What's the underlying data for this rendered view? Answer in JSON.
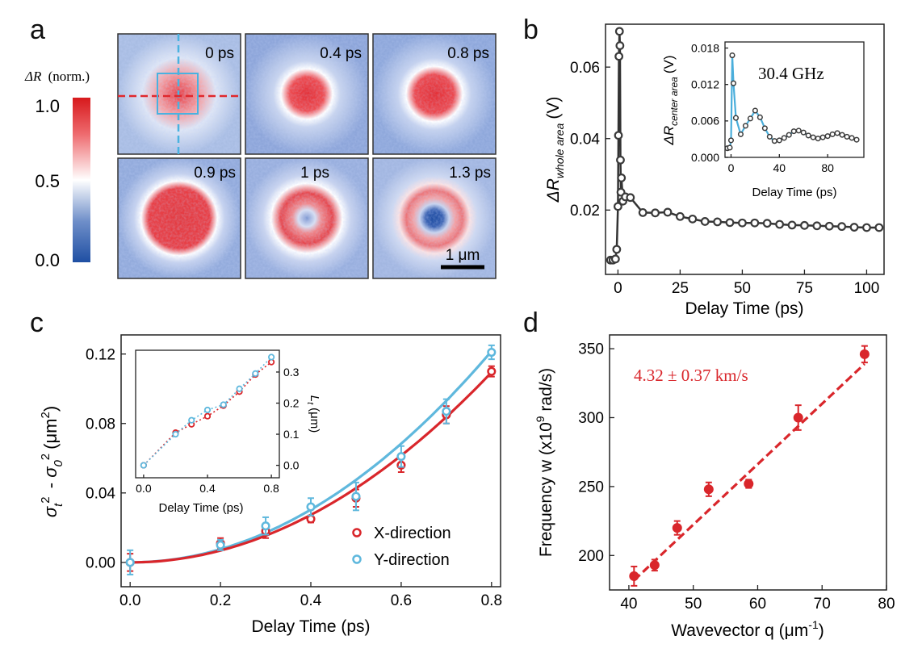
{
  "colors": {
    "red": "#d9262b",
    "blue": "#5fb8dd",
    "dark": "#3a3a3a",
    "cbar_top": "#d7191c",
    "cbar_mid": "#ffffff",
    "cbar_bottom": "#1f4fa3"
  },
  "panel_labels": [
    "a",
    "b",
    "c",
    "d"
  ],
  "panel_a": {
    "colorbar_title_symbol": "ΔR",
    "colorbar_title_unit": "(norm.)",
    "colorbar_ticks": [
      "1.0",
      "0.5",
      "0.0"
    ],
    "frames": [
      {
        "label": "0 ps",
        "pattern": "spot-small"
      },
      {
        "label": "0.4 ps",
        "pattern": "spot"
      },
      {
        "label": "0.8 ps",
        "pattern": "spot-large"
      },
      {
        "label": "0.9 ps",
        "pattern": "disk"
      },
      {
        "label": "1 ps",
        "pattern": "ring"
      },
      {
        "label": "1.3 ps",
        "pattern": "ring-dip"
      }
    ],
    "scalebar_label": "1 μm"
  },
  "chart_data": [
    {
      "panel": "b",
      "type": "line",
      "xlabel": "Delay Time (ps)",
      "ylabel_main": "ΔR",
      "ylabel_sub": "whole area",
      "ylabel_unit": "(V)",
      "xlim": [
        -5,
        107
      ],
      "ylim": [
        0.002,
        0.072
      ],
      "xticks": [
        0,
        25,
        50,
        75,
        100
      ],
      "yticks": [
        0.02,
        0.04,
        0.06
      ],
      "ytick_labels": [
        "0.02",
        "0.04",
        "0.06"
      ],
      "series": [
        {
          "name": "whole area",
          "x": [
            -3,
            -2,
            -1,
            -0.5,
            0,
            0.2,
            0.4,
            0.6,
            0.8,
            1.0,
            1.2,
            1.4,
            2,
            3,
            5,
            10,
            15,
            20,
            25,
            30,
            35,
            40,
            45,
            50,
            55,
            60,
            65,
            70,
            75,
            80,
            85,
            90,
            95,
            100,
            105
          ],
          "y": [
            0.006,
            0.006,
            0.0063,
            0.009,
            0.021,
            0.0409,
            0.063,
            0.07,
            0.066,
            0.034,
            0.025,
            0.029,
            0.0225,
            0.0237,
            0.0235,
            0.0193,
            0.0192,
            0.0194,
            0.0182,
            0.0175,
            0.0168,
            0.0167,
            0.0165,
            0.0164,
            0.0164,
            0.0163,
            0.016,
            0.0158,
            0.0157,
            0.0156,
            0.0155,
            0.0154,
            0.0152,
            0.0151,
            0.0151
          ]
        }
      ],
      "inset": {
        "type": "line",
        "xlabel": "Delay Time (ps)",
        "ylabel_main": "ΔR",
        "ylabel_sub": "center area",
        "ylabel_unit": "(V)",
        "annotation": "30.4 GHz",
        "xlim": [
          -5,
          110
        ],
        "ylim": [
          0,
          0.019
        ],
        "xticks": [
          0,
          40,
          80
        ],
        "yticks": [
          0.0,
          0.006,
          0.012,
          0.018
        ],
        "ytick_labels": [
          "0.000",
          "0.006",
          "0.012",
          "0.018"
        ],
        "points": {
          "x": [
            -3,
            -1,
            0,
            1,
            2,
            4,
            8,
            12,
            16,
            20,
            24,
            28,
            32,
            36,
            40,
            44,
            48,
            52,
            56,
            60,
            64,
            68,
            72,
            76,
            80,
            84,
            88,
            92,
            96,
            100,
            104
          ],
          "y": [
            0.0015,
            0.0016,
            0.0028,
            0.0168,
            0.0122,
            0.0065,
            0.0038,
            0.0052,
            0.0064,
            0.0077,
            0.0066,
            0.0048,
            0.0034,
            0.0027,
            0.0028,
            0.0032,
            0.0037,
            0.0043,
            0.0044,
            0.0041,
            0.0036,
            0.0033,
            0.0031,
            0.0033,
            0.0035,
            0.0038,
            0.004,
            0.0037,
            0.0034,
            0.0032,
            0.0029
          ]
        }
      }
    },
    {
      "panel": "c",
      "type": "scatter",
      "xlabel": "Delay Time (ps)",
      "ylabel": "σt² - σ0² (μm²)",
      "xlim": [
        -0.02,
        0.82
      ],
      "ylim": [
        -0.014,
        0.131
      ],
      "xticks": [
        0.0,
        0.2,
        0.4,
        0.6,
        0.8
      ],
      "xtick_labels": [
        "0.0",
        "0.2",
        "0.4",
        "0.6",
        "0.8"
      ],
      "yticks": [
        0.0,
        0.04,
        0.08,
        0.12
      ],
      "ytick_labels": [
        "0.00",
        "0.04",
        "0.08",
        "0.12"
      ],
      "legend_position": "bottom-right",
      "series": [
        {
          "name": "X-direction",
          "x": [
            0.0,
            0.2,
            0.3,
            0.4,
            0.5,
            0.6,
            0.7,
            0.8
          ],
          "y": [
            0.0,
            0.011,
            0.018,
            0.025,
            0.037,
            0.056,
            0.085,
            0.11
          ],
          "err": [
            0.005,
            0.003,
            0.004,
            0.002,
            0.005,
            0.004,
            0.005,
            0.003
          ],
          "fit_coefficient": 0.171
        },
        {
          "name": "Y-direction",
          "x": [
            0.0,
            0.2,
            0.3,
            0.4,
            0.5,
            0.6,
            0.7,
            0.8
          ],
          "y": [
            0.0,
            0.01,
            0.021,
            0.032,
            0.038,
            0.061,
            0.087,
            0.121
          ],
          "err": [
            0.007,
            0.003,
            0.005,
            0.005,
            0.008,
            0.006,
            0.007,
            0.004
          ],
          "fit_coefficient": 0.19
        }
      ],
      "inset": {
        "type": "scatter",
        "xlabel": "Delay Time (ps)",
        "ylabel": "Lt (μm)",
        "xlim": [
          -0.05,
          0.85
        ],
        "ylim": [
          -0.04,
          0.37
        ],
        "xticks": [
          0.0,
          0.4,
          0.8
        ],
        "xtick_labels": [
          "0.0",
          "0.4",
          "0.8"
        ],
        "yticks": [
          0.0,
          0.1,
          0.2,
          0.3
        ],
        "ytick_labels": [
          "0.0",
          "0.1",
          "0.2",
          "0.3"
        ],
        "series": [
          {
            "name": "X-direction",
            "x": [
              0.0,
              0.2,
              0.3,
              0.4,
              0.5,
              0.6,
              0.7,
              0.8
            ],
            "y": [
              0.0,
              0.105,
              0.132,
              0.158,
              0.192,
              0.237,
              0.292,
              0.332
            ]
          },
          {
            "name": "Y-direction",
            "x": [
              0.0,
              0.2,
              0.3,
              0.4,
              0.5,
              0.6,
              0.7,
              0.8
            ],
            "y": [
              0.0,
              0.1,
              0.145,
              0.178,
              0.195,
              0.246,
              0.295,
              0.348
            ]
          }
        ]
      }
    },
    {
      "panel": "d",
      "type": "scatter",
      "xlabel": "Wavevector q (μm⁻¹)",
      "ylabel": "Frequency w (x10⁹ rad/s)",
      "annotation": "4.32 ± 0.37 km/s",
      "xlim": [
        37,
        80
      ],
      "ylim": [
        175,
        360
      ],
      "xticks": [
        40,
        50,
        60,
        70,
        80
      ],
      "yticks": [
        200,
        250,
        300,
        350
      ],
      "series": [
        {
          "name": "data",
          "x": [
            40.8,
            44.0,
            47.5,
            52.4,
            58.6,
            66.3,
            76.6
          ],
          "y": [
            185,
            193,
            220,
            248,
            252,
            300,
            346
          ],
          "err": [
            7,
            4,
            5,
            5,
            3,
            9,
            6
          ]
        }
      ],
      "fit": {
        "x": [
          40.8,
          76.6
        ],
        "y": [
          182,
          339
        ]
      }
    }
  ]
}
